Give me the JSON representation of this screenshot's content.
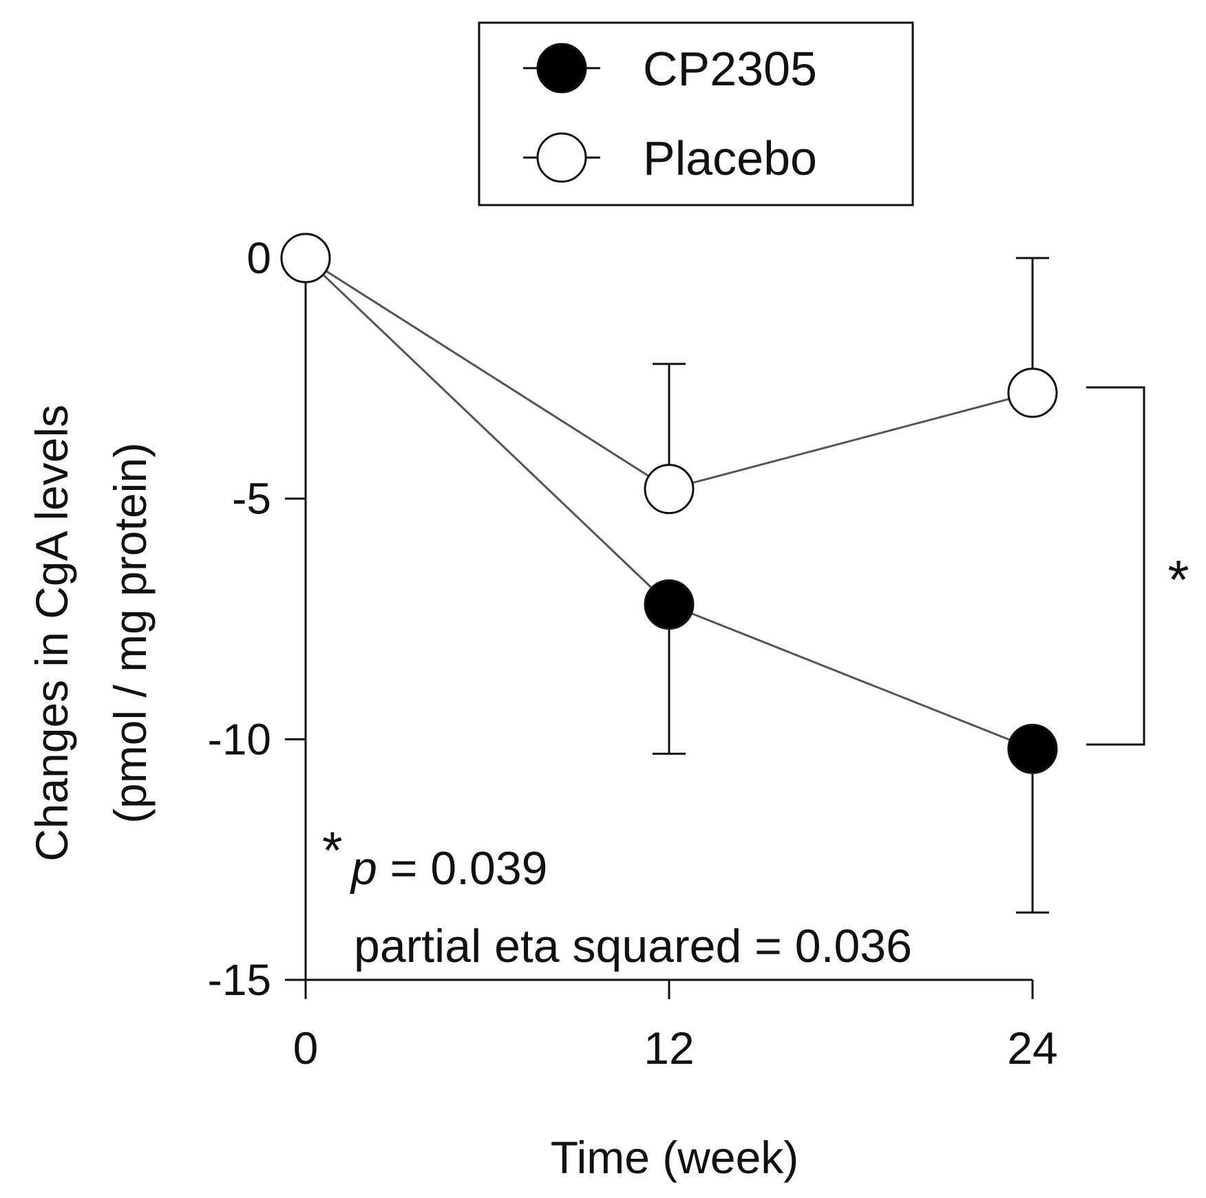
{
  "chart_data": {
    "type": "line",
    "title": "",
    "xlabel": "Time (week)",
    "ylabel": [
      "Changes in CgA levels",
      "(pmol / mg protein)"
    ],
    "x": [
      0,
      12,
      24
    ],
    "x_ticks": [
      "0",
      "12",
      "24"
    ],
    "xlim": [
      0,
      24
    ],
    "ylim": [
      -15,
      0
    ],
    "y_ticks": [
      "0",
      "-5",
      "-10",
      "-15"
    ],
    "y_tick_values": [
      0,
      -5,
      -10,
      -15
    ],
    "grid": false,
    "legend_position": "top-center",
    "series": [
      {
        "name": "CP2305",
        "marker": "filled-circle",
        "color": "#000000",
        "values": [
          0,
          -7.2,
          -10.2
        ],
        "error_dir": "down",
        "errors": [
          0,
          3.1,
          3.4
        ]
      },
      {
        "name": "Placebo",
        "marker": "open-circle",
        "color": "#ffffff",
        "values": [
          0,
          -4.8,
          -2.8
        ],
        "error_dir": "up",
        "errors": [
          0,
          2.6,
          2.8
        ]
      }
    ],
    "significance": {
      "marker": "*",
      "p_prefix": "p",
      "p_rest": " = 0.039",
      "effect_size": "partial eta squared = 0.036"
    }
  },
  "colors": {
    "line": "#555555",
    "axis": "#111111",
    "marker_stroke": "#111111"
  }
}
